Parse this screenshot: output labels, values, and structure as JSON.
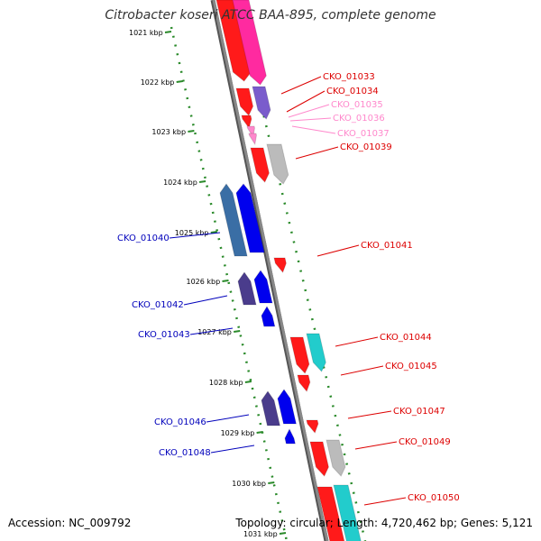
{
  "title": "Citrobacter koseri ATCC BAA-895, complete genome",
  "accession": "Accession: NC_009792",
  "topology": "Topology: circular; Length: 4,720,462 bp; Genes: 5,121",
  "colors": {
    "backbone": "#888888",
    "ruler": "#2a8a2a",
    "forward_label": "#dd0000",
    "reverse_label": "#0000bb",
    "light_label": "#ff88cc"
  },
  "kbp_labels": [
    "1021 kbp",
    "1022 kbp",
    "1023 kbp",
    "1024 kbp",
    "1025 kbp",
    "1026 kbp",
    "1027 kbp",
    "1028 kbp",
    "1029 kbp",
    "1030 kbp",
    "1031 kbp"
  ],
  "right_genes": [
    {
      "name": "CKO_01033",
      "color": "#dd0000"
    },
    {
      "name": "CKO_01034",
      "color": "#dd0000"
    },
    {
      "name": "CKO_01035",
      "color": "#ff88cc"
    },
    {
      "name": "CKO_01036",
      "color": "#ff88cc"
    },
    {
      "name": "CKO_01037",
      "color": "#ff88cc"
    },
    {
      "name": "CKO_01039",
      "color": "#dd0000"
    },
    {
      "name": "CKO_01041",
      "color": "#dd0000"
    },
    {
      "name": "CKO_01044",
      "color": "#dd0000"
    },
    {
      "name": "CKO_01045",
      "color": "#dd0000"
    },
    {
      "name": "CKO_01047",
      "color": "#dd0000"
    },
    {
      "name": "CKO_01049",
      "color": "#dd0000"
    },
    {
      "name": "CKO_01050",
      "color": "#dd0000"
    }
  ],
  "left_genes": [
    {
      "name": "CKO_01040",
      "color": "#0000bb"
    },
    {
      "name": "CKO_01042",
      "color": "#0000bb"
    },
    {
      "name": "CKO_01043",
      "color": "#0000bb"
    },
    {
      "name": "CKO_01046",
      "color": "#0000bb"
    },
    {
      "name": "CKO_01048",
      "color": "#0000bb"
    }
  ]
}
